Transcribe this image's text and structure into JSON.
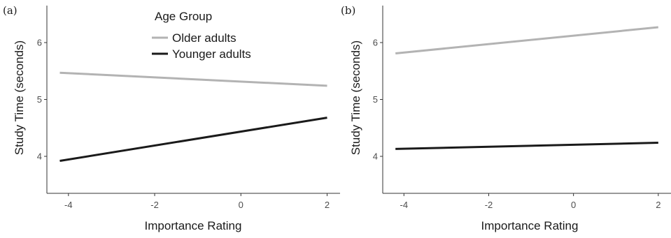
{
  "chart_data": [
    {
      "type": "line",
      "panel_label": "(a)",
      "xlabel": "Importance Rating",
      "ylabel": "Study Time (seconds)",
      "xlim": [
        -4.5,
        2.3
      ],
      "ylim": [
        3.35,
        6.65
      ],
      "x_ticks": [
        -4,
        -2,
        0,
        2
      ],
      "y_ticks": [
        4,
        5,
        6
      ],
      "x_tick_labels": [
        "-4",
        "-2",
        "0",
        "2"
      ],
      "y_tick_labels": [
        "4",
        "5",
        "6"
      ],
      "legend": {
        "title": "Age Group",
        "placement": "top-center"
      },
      "series": [
        {
          "name": "Older adults",
          "color": "#b3b3b3",
          "x": [
            -4.2,
            2
          ],
          "y": [
            5.47,
            5.24
          ]
        },
        {
          "name": "Younger adults",
          "color": "#1a1a1a",
          "x": [
            -4.2,
            2
          ],
          "y": [
            3.92,
            4.68
          ]
        }
      ]
    },
    {
      "type": "line",
      "panel_label": "(b)",
      "xlabel": "Importance Rating",
      "ylabel": "Study Time (seconds)",
      "xlim": [
        -4.5,
        2.3
      ],
      "ylim": [
        3.35,
        6.65
      ],
      "x_ticks": [
        -4,
        -2,
        0,
        2
      ],
      "y_ticks": [
        4,
        5,
        6
      ],
      "x_tick_labels": [
        "-4",
        "-2",
        "0",
        "2"
      ],
      "y_tick_labels": [
        "4",
        "5",
        "6"
      ],
      "series": [
        {
          "name": "Older adults",
          "color": "#b3b3b3",
          "x": [
            -4.2,
            2
          ],
          "y": [
            5.81,
            6.27
          ]
        },
        {
          "name": "Younger adults",
          "color": "#1a1a1a",
          "x": [
            -4.2,
            2
          ],
          "y": [
            4.13,
            4.24
          ]
        }
      ]
    }
  ]
}
